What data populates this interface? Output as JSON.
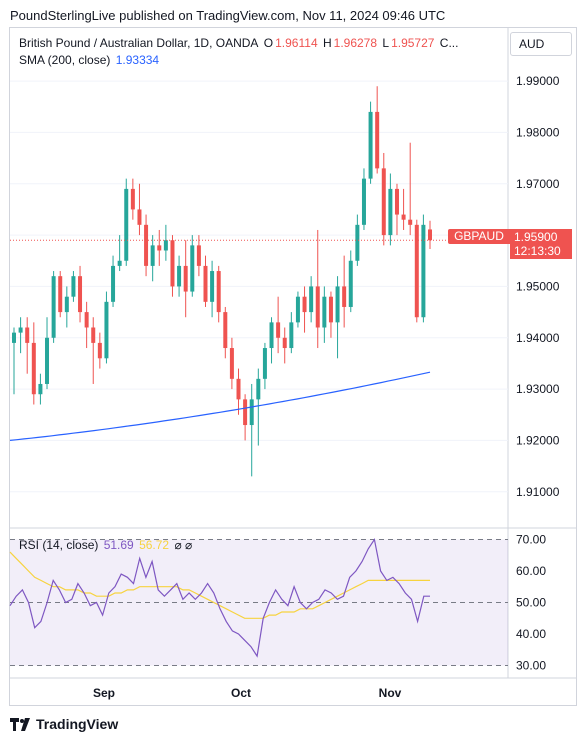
{
  "header": {
    "published_by": "PoundSterlingLive published on TradingView.com, Nov 11, 2024 09:46 UTC"
  },
  "legend": {
    "symbol": "British Pound / Australian Dollar, 1D, OANDA",
    "o_label": "O",
    "o_value": "1.96114",
    "h_label": "H",
    "h_value": "1.96278",
    "l_label": "L",
    "l_value": "1.95727",
    "c_label": "C...",
    "sma_label": "SMA (200, close)",
    "sma_value": "1.93334",
    "rsi_label": "RSI (14, close)",
    "rsi_value": "51.69",
    "rsi_ma_value": "56.72",
    "hidden_symbols": "⌀ ⌀"
  },
  "currency": "AUD",
  "price_tag": {
    "symbol": "GBPAUD",
    "price": "1.95900",
    "countdown": "12:13:30"
  },
  "footer": {
    "brand": "TradingView",
    "logo": "tradingview-logo-icon"
  },
  "colors": {
    "up": "#26a69a",
    "down": "#ef5350",
    "sma": "#2962ff",
    "rsi": "#7e57c2",
    "rsi_ma": "#f7d33f"
  },
  "chart_data": {
    "type": "candlestick",
    "price_axis": {
      "ticks": [
        "1.99000",
        "1.98000",
        "1.97000",
        "1.96000",
        "1.95000",
        "1.94000",
        "1.93000",
        "1.92000",
        "1.91000"
      ],
      "range": [
        1.9045,
        1.9945
      ]
    },
    "time_axis": {
      "labels": [
        "Sep",
        "Oct",
        "Nov"
      ]
    },
    "ohlc": [
      [
        1.939,
        1.942,
        1.929,
        1.941
      ],
      [
        1.941,
        1.944,
        1.937,
        1.942
      ],
      [
        1.942,
        1.944,
        1.933,
        1.939
      ],
      [
        1.939,
        1.943,
        1.927,
        1.929
      ],
      [
        1.929,
        1.933,
        1.927,
        1.931
      ],
      [
        1.931,
        1.944,
        1.93,
        1.94
      ],
      [
        1.94,
        1.953,
        1.939,
        1.952
      ],
      [
        1.952,
        1.953,
        1.944,
        1.945
      ],
      [
        1.945,
        1.95,
        1.942,
        1.948
      ],
      [
        1.948,
        1.953,
        1.947,
        1.952
      ],
      [
        1.952,
        1.954,
        1.943,
        1.945
      ],
      [
        1.945,
        1.947,
        1.938,
        1.942
      ],
      [
        1.942,
        1.944,
        1.931,
        1.939
      ],
      [
        1.939,
        1.941,
        1.934,
        1.936
      ],
      [
        1.936,
        1.949,
        1.935,
        1.947
      ],
      [
        1.947,
        1.956,
        1.946,
        1.954
      ],
      [
        1.954,
        1.96,
        1.953,
        1.955
      ],
      [
        1.955,
        1.971,
        1.954,
        1.969
      ],
      [
        1.969,
        1.971,
        1.963,
        1.965
      ],
      [
        1.965,
        1.97,
        1.96,
        1.962
      ],
      [
        1.962,
        1.964,
        1.952,
        1.954
      ],
      [
        1.954,
        1.96,
        1.951,
        1.958
      ],
      [
        1.958,
        1.961,
        1.954,
        1.957
      ],
      [
        1.957,
        1.962,
        1.955,
        1.959
      ],
      [
        1.959,
        1.96,
        1.948,
        1.95
      ],
      [
        1.95,
        1.956,
        1.948,
        1.954
      ],
      [
        1.954,
        1.959,
        1.944,
        1.949
      ],
      [
        1.949,
        1.96,
        1.948,
        1.958
      ],
      [
        1.958,
        1.96,
        1.952,
        1.954
      ],
      [
        1.954,
        1.956,
        1.946,
        1.947
      ],
      [
        1.947,
        1.955,
        1.944,
        1.953
      ],
      [
        1.953,
        1.954,
        1.943,
        1.945
      ],
      [
        1.945,
        1.946,
        1.936,
        1.938
      ],
      [
        1.938,
        1.94,
        1.93,
        1.932
      ],
      [
        1.932,
        1.934,
        1.925,
        1.928
      ],
      [
        1.928,
        1.929,
        1.92,
        1.923
      ],
      [
        1.923,
        1.931,
        1.913,
        1.928
      ],
      [
        1.928,
        1.934,
        1.919,
        1.932
      ],
      [
        1.932,
        1.939,
        1.93,
        1.938
      ],
      [
        1.938,
        1.944,
        1.935,
        1.943
      ],
      [
        1.943,
        1.948,
        1.937,
        1.94
      ],
      [
        1.94,
        1.942,
        1.935,
        1.938
      ],
      [
        1.938,
        1.945,
        1.937,
        1.943
      ],
      [
        1.943,
        1.949,
        1.942,
        1.948
      ],
      [
        1.948,
        1.95,
        1.941,
        1.945
      ],
      [
        1.945,
        1.952,
        1.943,
        1.95
      ],
      [
        1.95,
        1.961,
        1.938,
        1.942
      ],
      [
        1.942,
        1.95,
        1.939,
        1.948
      ],
      [
        1.948,
        1.949,
        1.94,
        1.943
      ],
      [
        1.943,
        1.952,
        1.936,
        1.95
      ],
      [
        1.95,
        1.956,
        1.942,
        1.946
      ],
      [
        1.946,
        1.957,
        1.945,
        1.955
      ],
      [
        1.955,
        1.964,
        1.954,
        1.962
      ],
      [
        1.962,
        1.973,
        1.961,
        1.971
      ],
      [
        1.971,
        1.986,
        1.97,
        1.984
      ],
      [
        1.984,
        1.989,
        1.972,
        1.973
      ],
      [
        1.973,
        1.976,
        1.958,
        1.96
      ],
      [
        1.96,
        1.972,
        1.958,
        1.969
      ],
      [
        1.969,
        1.97,
        1.96,
        1.964
      ],
      [
        1.964,
        1.969,
        1.961,
        1.963
      ],
      [
        1.963,
        1.978,
        1.96,
        1.962
      ],
      [
        1.962,
        1.963,
        1.943,
        1.944
      ],
      [
        1.944,
        1.964,
        1.943,
        1.962
      ],
      [
        1.9611,
        1.9628,
        1.9573,
        1.959
      ]
    ],
    "sma_200": {
      "start": 1.92,
      "end": 1.9333,
      "label": "SMA (200, close)"
    },
    "rsi": {
      "axis_ticks": [
        "70.00",
        "60.00",
        "50.00",
        "40.00",
        "30.00"
      ],
      "range": [
        27,
        73
      ],
      "bands": {
        "upper": 70,
        "middle": 50,
        "lower": 30
      },
      "rsi_values": [
        49,
        52,
        54,
        50,
        42,
        44,
        50,
        57,
        54,
        50,
        51,
        56,
        53,
        49,
        50,
        46,
        53,
        55,
        59,
        58,
        56,
        64,
        58,
        63,
        54,
        52,
        54,
        56,
        51,
        53,
        51,
        53,
        56,
        53,
        48,
        44,
        41,
        40,
        38,
        36,
        33,
        45,
        50,
        54,
        51,
        49,
        55,
        50,
        48,
        50,
        51,
        54,
        53,
        51,
        52,
        58,
        60,
        63,
        67,
        70,
        60,
        57,
        58,
        56,
        53,
        51,
        44,
        52,
        52
      ],
      "ma_values": [
        66,
        64,
        62,
        60,
        58,
        57,
        56,
        55,
        55,
        54,
        54,
        54,
        53,
        53,
        52,
        52,
        52,
        53,
        53,
        54,
        54,
        55,
        55,
        55,
        55,
        55,
        55,
        55,
        54,
        54,
        53,
        52,
        51,
        50,
        49,
        48,
        47,
        46,
        45,
        45,
        45,
        45,
        46,
        46,
        47,
        47,
        47,
        48,
        48,
        48,
        49,
        50,
        51,
        52,
        53,
        54,
        55,
        56,
        57,
        57,
        57,
        57,
        57,
        57,
        57,
        57,
        57,
        57,
        57
      ]
    }
  }
}
